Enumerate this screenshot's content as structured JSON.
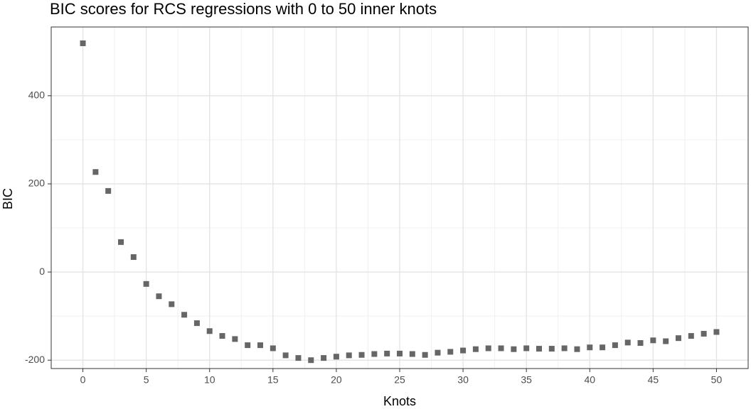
{
  "chart_data": {
    "type": "scatter",
    "title": "BIC scores for RCS regressions with 0 to 50 inner knots",
    "x_label": "Knots",
    "y_label": "BIC",
    "x": [
      0,
      1,
      2,
      3,
      4,
      5,
      6,
      7,
      8,
      9,
      10,
      11,
      12,
      13,
      14,
      15,
      16,
      17,
      18,
      19,
      20,
      21,
      22,
      23,
      24,
      25,
      26,
      27,
      28,
      29,
      30,
      31,
      32,
      33,
      34,
      35,
      36,
      37,
      38,
      39,
      40,
      41,
      42,
      43,
      44,
      45,
      46,
      47,
      48,
      49,
      50
    ],
    "series": [
      {
        "name": "BIC",
        "color": "#666666",
        "values": [
          519,
          227,
          184,
          68,
          34,
          -27,
          -55,
          -73,
          -97,
          -116,
          -134,
          -145,
          -152,
          -166,
          -166,
          -173,
          -189,
          -195,
          -200,
          -195,
          -192,
          -189,
          -188,
          -186,
          -185,
          -185,
          -186,
          -188,
          -183,
          -181,
          -178,
          -175,
          -173,
          -173,
          -175,
          -173,
          -174,
          -174,
          -173,
          -175,
          -171,
          -171,
          -166,
          -160,
          -161,
          -155,
          -157,
          -150,
          -145,
          -140,
          -136
        ]
      }
    ],
    "xlim": [
      -2.5,
      52.5
    ],
    "ylim": [
      -219,
      556
    ],
    "xticks": [
      0,
      5,
      10,
      15,
      20,
      25,
      30,
      35,
      40,
      45,
      50
    ],
    "yticks": [
      -200,
      0,
      200,
      400
    ],
    "grid": true
  }
}
